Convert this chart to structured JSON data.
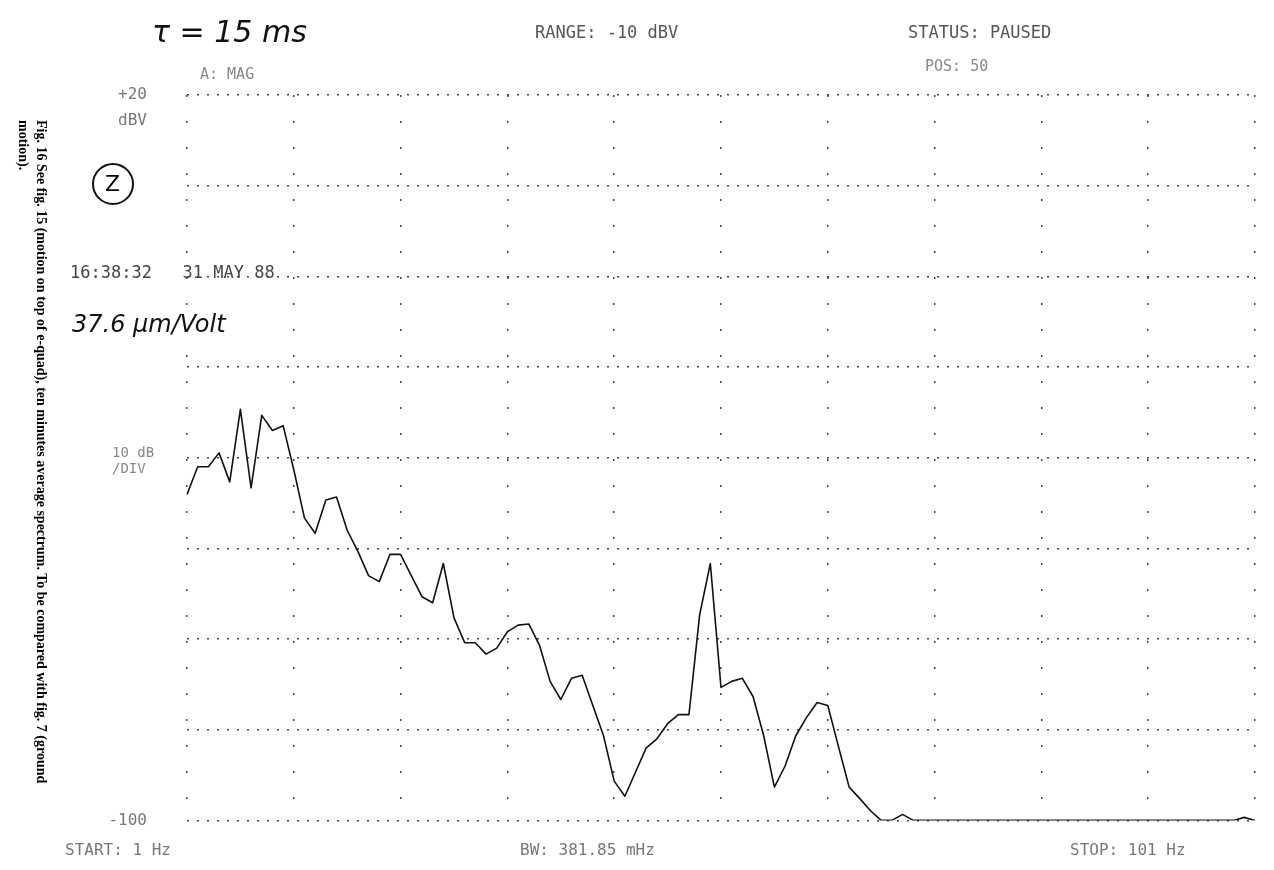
{
  "chart_data": {
    "type": "line",
    "ylabel": "dBV",
    "annotations": [
      "τ = 15 ms",
      "RANGE: -10 dBV",
      "STATUS: PAUSED",
      "A: MAG",
      "POS: 50",
      "Z",
      "16:38:32   31 MAY 88",
      "37.6 μm/Volt",
      "10 dB /DIV",
      "START: 1 Hz",
      "BW: 381.85 mHz",
      "STOP: 101 Hz",
      "Fig. 16  See fig. 15 (motion on top of e-quad), ten minutes average spectrum. To be compared with fig. 7 (ground motion)."
    ],
    "categories": [
      null,
      null,
      null,
      null,
      null,
      null,
      null,
      null,
      null,
      null,
      null,
      null,
      null,
      null,
      null,
      null,
      null,
      null,
      null,
      null,
      null,
      null,
      null,
      null,
      null,
      null,
      null,
      null,
      null,
      null,
      null,
      null,
      null,
      null,
      null,
      null,
      null,
      null,
      null,
      null,
      null,
      null,
      null,
      null,
      null,
      null,
      null,
      null,
      null,
      null,
      null,
      null,
      null,
      null,
      null,
      null,
      null,
      null,
      null,
      null,
      null,
      null,
      null,
      null,
      null,
      null,
      null,
      null,
      null,
      null,
      null,
      null,
      null,
      null,
      null,
      null,
      null,
      null,
      null,
      null,
      null,
      null,
      null,
      null,
      null,
      null,
      null,
      null,
      null,
      null,
      null,
      null,
      null,
      null,
      null,
      null,
      null,
      null,
      null,
      null,
      null
    ],
    "series": [
      {
        "color": "#111111",
        "values": [
          -46.1,
          -41.5,
          -41.5,
          -39.2,
          -44,
          -32,
          -45,
          -33,
          -35.5,
          -34.7,
          -42,
          -50,
          -52.5,
          -47,
          -46.5,
          -52,
          -55.5,
          -59.5,
          -60.5,
          -56,
          -56,
          -59.5,
          -63,
          -64,
          -57.5,
          -66.5,
          -70.6,
          -70.6,
          -72.5,
          -71.5,
          -68.8,
          -67.7,
          -67.5,
          -71,
          -77,
          -80,
          -76.5,
          -76,
          -81,
          -86,
          -93.5,
          -96,
          -92,
          -88,
          -86.5,
          -84,
          -82.5,
          -82.5,
          -66,
          -57.5,
          -78,
          -77,
          -76.5,
          -79.5,
          -86,
          -94.5,
          -91,
          -86,
          -83,
          -80.5,
          -81,
          -87.8,
          -94.5,
          -96.4,
          -98.4,
          -100,
          -100,
          -99,
          -100,
          -100,
          -100,
          -100,
          -100,
          -100,
          -100,
          -100,
          -100,
          -100,
          -100,
          -100,
          -100,
          -100,
          -100,
          -100,
          -100,
          -100,
          -100,
          -100,
          -100,
          -100,
          -100,
          -100,
          -100,
          -100,
          -100,
          -100,
          -100,
          -100,
          -100,
          -99.5,
          -100
        ]
      }
    ],
    "ylim": [
      -100,
      20
    ],
    "yticks": [
      {
        "value": 20,
        "label": "+20"
      },
      {
        "value": 5,
        "label": null
      },
      {
        "value": -10,
        "label": null
      },
      {
        "value": -25,
        "label": null
      },
      {
        "value": -40,
        "label": null
      },
      {
        "value": -55,
        "label": null
      },
      {
        "value": -70,
        "label": null
      },
      {
        "value": -85,
        "label": null
      },
      {
        "value": -100,
        "label": "-100"
      }
    ],
    "grid": true,
    "legend": false,
    "marker": "none",
    "line_style": "solid",
    "tick_labels": "y"
  }
}
